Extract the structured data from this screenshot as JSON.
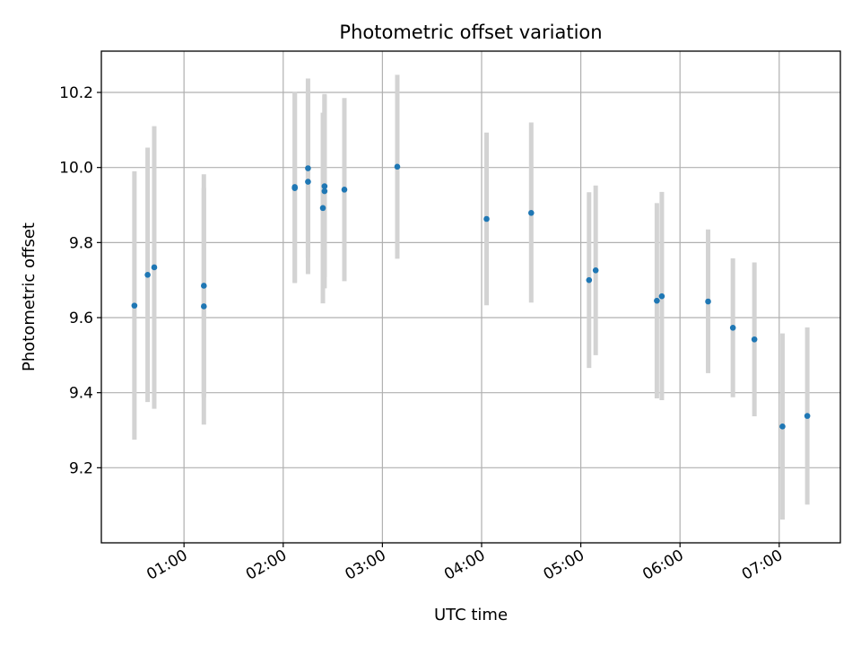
{
  "chart_data": {
    "type": "scatter",
    "title": "Photometric offset variation",
    "xlabel": "UTC time",
    "ylabel": "Photometric offset",
    "x_unit": "hours UTC",
    "xlim": [
      "00:10",
      "07:37"
    ],
    "ylim": [
      9.0,
      10.31
    ],
    "x_ticks": [
      "01:00",
      "02:00",
      "03:00",
      "04:00",
      "05:00",
      "06:00",
      "07:00"
    ],
    "y_ticks": [
      "9.2",
      "9.4",
      "9.6",
      "9.8",
      "10.0",
      "10.2"
    ],
    "grid": true,
    "marker_color": "#1f77b4",
    "errorbar_color": "#d3d3d3",
    "series": [
      {
        "points": [
          {
            "x": "00:30",
            "y": 9.632,
            "err_low": 9.275,
            "err_high": 9.99
          },
          {
            "x": "00:38",
            "y": 9.714,
            "err_low": 9.375,
            "err_high": 10.053
          },
          {
            "x": "00:42",
            "y": 9.734,
            "err_low": 9.357,
            "err_high": 10.11
          },
          {
            "x": "01:12",
            "y": 9.685,
            "err_low": 9.388,
            "err_high": 9.982
          },
          {
            "x": "01:12",
            "y": 9.63,
            "err_low": 9.315,
            "err_high": 9.945
          },
          {
            "x": "02:07",
            "y": 9.945,
            "err_low": 9.692,
            "err_high": 10.2
          },
          {
            "x": "02:07",
            "y": 9.948,
            "err_low": 9.694,
            "err_high": 10.202
          },
          {
            "x": "02:15",
            "y": 9.998,
            "err_low": 9.76,
            "err_high": 10.237
          },
          {
            "x": "02:15",
            "y": 9.962,
            "err_low": 9.716,
            "err_high": 10.208
          },
          {
            "x": "02:24",
            "y": 9.892,
            "err_low": 9.638,
            "err_high": 10.146
          },
          {
            "x": "02:25",
            "y": 9.937,
            "err_low": 9.678,
            "err_high": 10.196
          },
          {
            "x": "02:25",
            "y": 9.95,
            "err_low": 9.708,
            "err_high": 10.192
          },
          {
            "x": "02:37",
            "y": 9.941,
            "err_low": 9.697,
            "err_high": 10.185
          },
          {
            "x": "03:09",
            "y": 10.002,
            "err_low": 9.757,
            "err_high": 10.247
          },
          {
            "x": "04:03",
            "y": 9.863,
            "err_low": 9.633,
            "err_high": 10.093
          },
          {
            "x": "04:30",
            "y": 9.879,
            "err_low": 9.64,
            "err_high": 10.12
          },
          {
            "x": "05:05",
            "y": 9.7,
            "err_low": 9.466,
            "err_high": 9.934
          },
          {
            "x": "05:09",
            "y": 9.726,
            "err_low": 9.5,
            "err_high": 9.952
          },
          {
            "x": "05:46",
            "y": 9.645,
            "err_low": 9.385,
            "err_high": 9.905
          },
          {
            "x": "05:49",
            "y": 9.657,
            "err_low": 9.38,
            "err_high": 9.935
          },
          {
            "x": "06:17",
            "y": 9.643,
            "err_low": 9.452,
            "err_high": 9.835
          },
          {
            "x": "06:32",
            "y": 9.573,
            "err_low": 9.388,
            "err_high": 9.758
          },
          {
            "x": "06:45",
            "y": 9.542,
            "err_low": 9.337,
            "err_high": 9.747
          },
          {
            "x": "07:02",
            "y": 9.31,
            "err_low": 9.062,
            "err_high": 9.558
          },
          {
            "x": "07:17",
            "y": 9.338,
            "err_low": 9.102,
            "err_high": 9.574
          }
        ]
      }
    ]
  }
}
